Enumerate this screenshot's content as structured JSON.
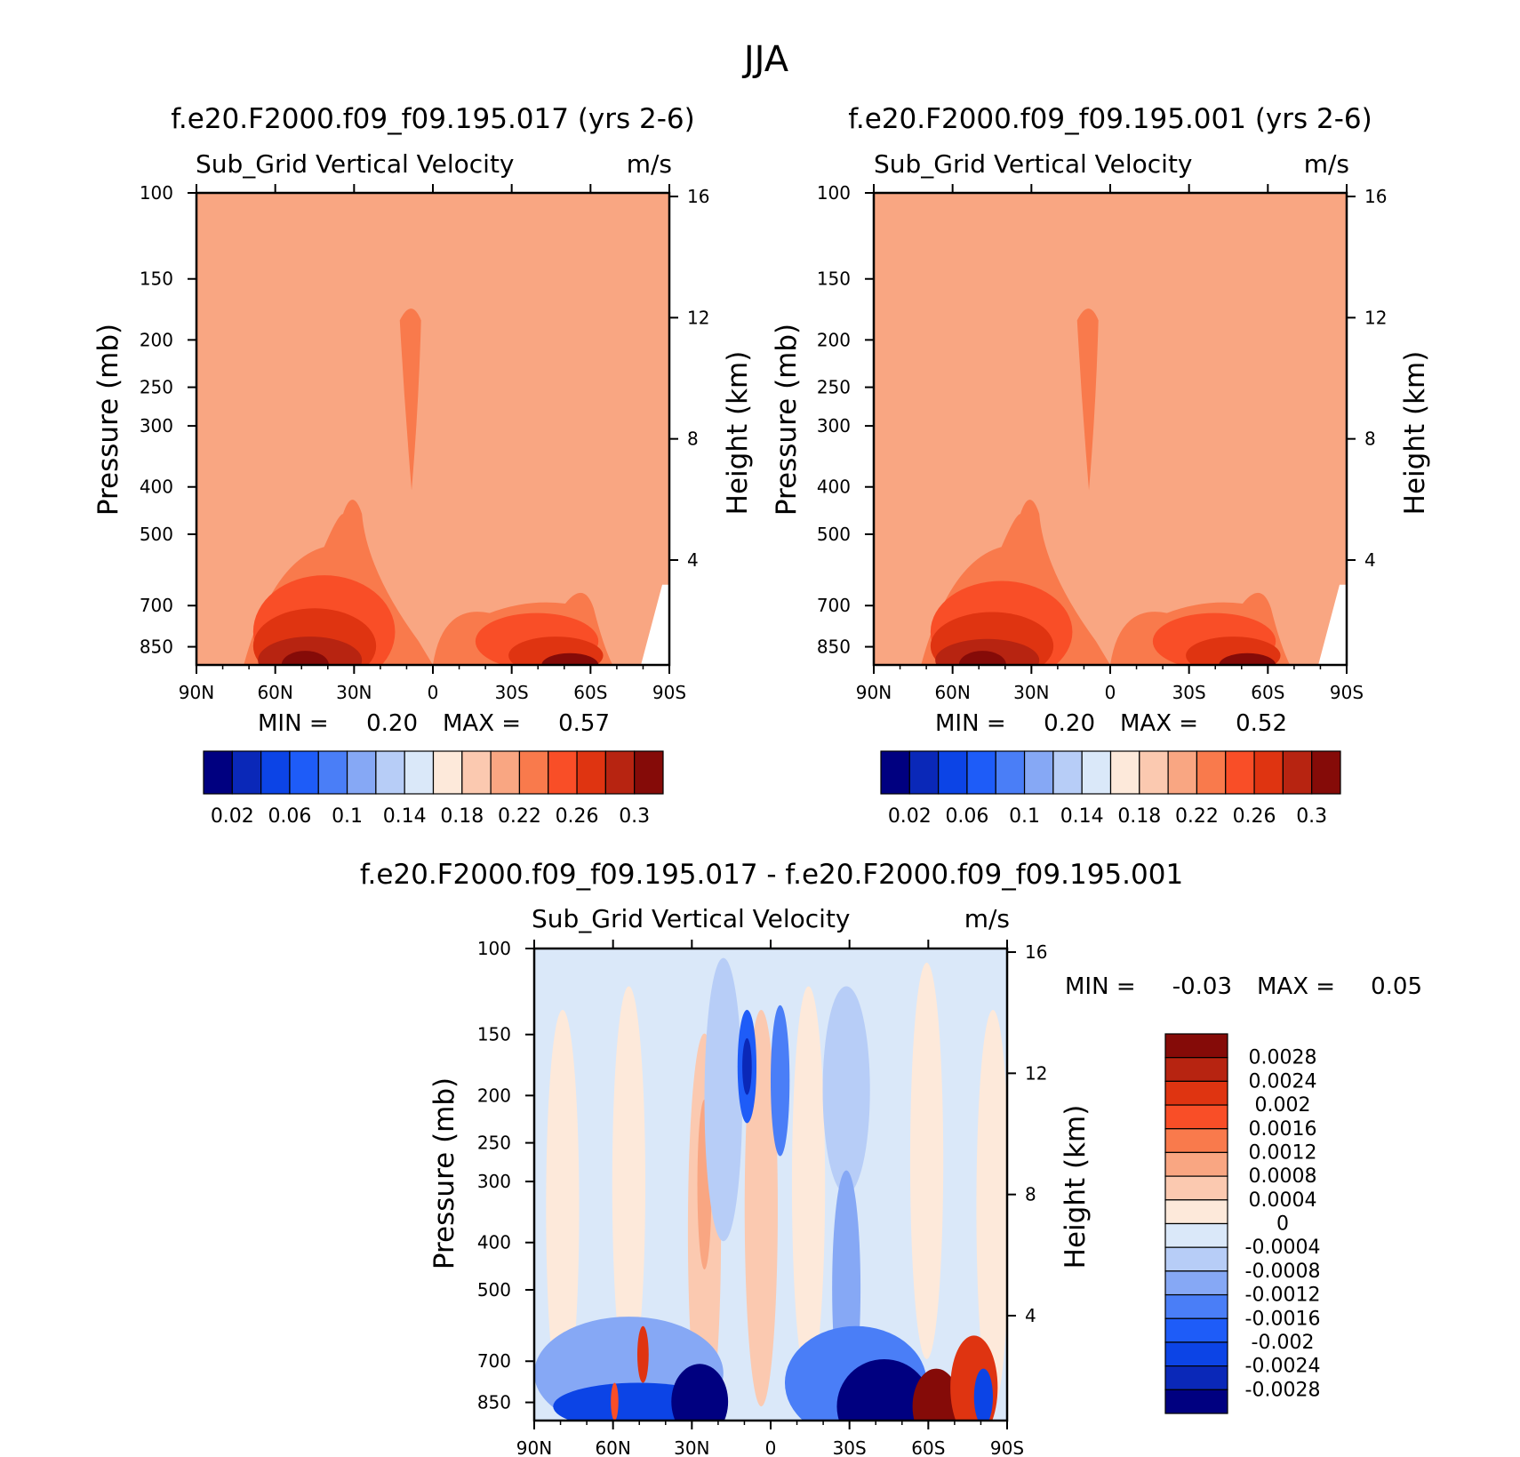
{
  "figure": {
    "season": "JJA",
    "min_label": "MIN =",
    "max_label": "MAX ="
  },
  "colors": {
    "abs_palette": [
      "#000080",
      "#0a28b8",
      "#0c44e6",
      "#1e5cf8",
      "#4a7ef7",
      "#86a8f5",
      "#b7cdf7",
      "#dae8f9",
      "#fde9da",
      "#fbc9b0",
      "#f9a682",
      "#f97a4c",
      "#f94e27",
      "#df3411",
      "#b72411",
      "#850b08"
    ],
    "diff_palette": [
      "#000080",
      "#0a28b8",
      "#0c44e6",
      "#1e5cf8",
      "#4a7ef7",
      "#86a8f5",
      "#b7cdf7",
      "#dae8f9",
      "#fde9da",
      "#fbc9b0",
      "#f9a682",
      "#f97a4c",
      "#f94e27",
      "#df3411",
      "#b72411",
      "#850b08"
    ]
  },
  "chart_data": [
    {
      "type": "heatmap",
      "title": "f.e20.F2000.f09_f09.195.017 (yrs 2-6)",
      "variable": "Sub_Grid Vertical Velocity",
      "units": "m/s",
      "ylabel": "Pressure (mb)",
      "y2label": "Height (km)",
      "x_ticks": [
        "90N",
        "60N",
        "30N",
        "0",
        "30S",
        "60S",
        "90S"
      ],
      "y_ticks": [
        "100",
        "150",
        "200",
        "250",
        "300",
        "400",
        "500",
        "700",
        "850"
      ],
      "y2_ticks": [
        "16",
        "12",
        "8",
        "4"
      ],
      "min": "0.20",
      "max": "0.57",
      "colorbar_labels": [
        "0.02",
        "0.06",
        "0.1",
        "0.14",
        "0.18",
        "0.22",
        "0.26",
        "0.3"
      ],
      "levels": [
        0.02,
        0.04,
        0.06,
        0.08,
        0.1,
        0.12,
        0.14,
        0.16,
        0.18,
        0.2,
        0.22,
        0.24,
        0.26,
        0.28,
        0.3
      ]
    },
    {
      "type": "heatmap",
      "title": "f.e20.F2000.f09_f09.195.001 (yrs 2-6)",
      "variable": "Sub_Grid Vertical Velocity",
      "units": "m/s",
      "ylabel": "Pressure (mb)",
      "y2label": "Height (km)",
      "x_ticks": [
        "90N",
        "60N",
        "30N",
        "0",
        "30S",
        "60S",
        "90S"
      ],
      "y_ticks": [
        "100",
        "150",
        "200",
        "250",
        "300",
        "400",
        "500",
        "700",
        "850"
      ],
      "y2_ticks": [
        "16",
        "12",
        "8",
        "4"
      ],
      "min": "0.20",
      "max": "0.52",
      "colorbar_labels": [
        "0.02",
        "0.06",
        "0.1",
        "0.14",
        "0.18",
        "0.22",
        "0.26",
        "0.3"
      ],
      "levels": [
        0.02,
        0.04,
        0.06,
        0.08,
        0.1,
        0.12,
        0.14,
        0.16,
        0.18,
        0.2,
        0.22,
        0.24,
        0.26,
        0.28,
        0.3
      ]
    },
    {
      "type": "heatmap",
      "title": "f.e20.F2000.f09_f09.195.017 - f.e20.F2000.f09_f09.195.001",
      "variable": "Sub_Grid Vertical Velocity",
      "units": "m/s",
      "ylabel": "Pressure (mb)",
      "y2label": "Height (km)",
      "x_ticks": [
        "90N",
        "60N",
        "30N",
        "0",
        "30S",
        "60S",
        "90S"
      ],
      "y_ticks": [
        "100",
        "150",
        "200",
        "250",
        "300",
        "400",
        "500",
        "700",
        "850"
      ],
      "y2_ticks": [
        "16",
        "12",
        "8",
        "4"
      ],
      "min": "-0.03",
      "max": "0.05",
      "colorbar_labels": [
        "0.0028",
        "0.0024",
        "0.002",
        "0.0016",
        "0.0012",
        "0.0008",
        "0.0004",
        "0",
        "-0.0004",
        "-0.0008",
        "-0.0012",
        "-0.0016",
        "-0.002",
        "-0.0024",
        "-0.0028"
      ],
      "levels": [
        -0.0028,
        -0.0024,
        -0.002,
        -0.0016,
        -0.0012,
        -0.0008,
        -0.0004,
        0,
        0.0004,
        0.0008,
        0.0012,
        0.0016,
        0.002,
        0.0024,
        0.0028
      ]
    }
  ]
}
